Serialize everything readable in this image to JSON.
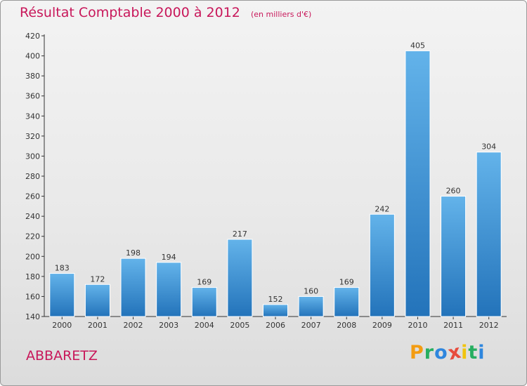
{
  "chart_data": {
    "type": "bar",
    "title": "Résultat Comptable 2000 à 2012",
    "subtitle": "(en milliers d'€)",
    "categories": [
      "2000",
      "2001",
      "2002",
      "2003",
      "2004",
      "2005",
      "2006",
      "2007",
      "2008",
      "2009",
      "2010",
      "2011",
      "2012"
    ],
    "values": [
      183,
      172,
      198,
      194,
      169,
      217,
      152,
      160,
      169,
      242,
      405,
      260,
      304
    ],
    "ylim": [
      140,
      420
    ],
    "yticks": [
      140,
      160,
      180,
      200,
      220,
      240,
      260,
      280,
      300,
      320,
      340,
      360,
      380,
      400,
      420
    ],
    "grid": false,
    "xlabel": "",
    "ylabel": ""
  },
  "commune": "ABBARETZ",
  "logo": {
    "letters": [
      "P",
      "r",
      "o",
      "x",
      "i",
      "t",
      "i"
    ],
    "colors": [
      "#f39c12",
      "#27ae60",
      "#2e86de",
      "#e74c3c",
      "#f1c40f",
      "#27ae60",
      "#2e86de"
    ]
  },
  "colors": {
    "bar_top": "#63b3ea",
    "bar_bottom": "#2373ba",
    "title": "#c8175a",
    "axis": "#333333"
  }
}
